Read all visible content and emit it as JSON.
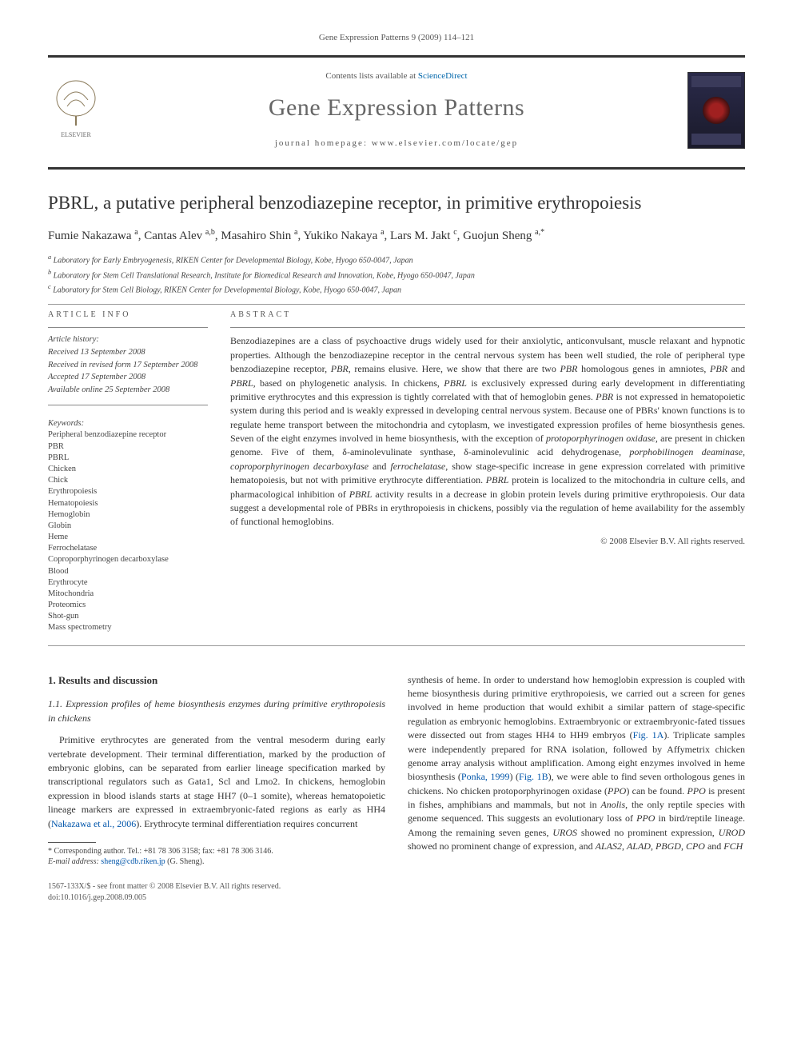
{
  "running_head": "Gene Expression Patterns 9 (2009) 114–121",
  "masthead": {
    "contents_prefix": "Contents lists available at ",
    "contents_link": "ScienceDirect",
    "journal_name": "Gene Expression Patterns",
    "homepage_prefix": "journal homepage: ",
    "homepage_url": "www.elsevier.com/locate/gep"
  },
  "article": {
    "title": "PBRL, a putative peripheral benzodiazepine receptor, in primitive erythropoiesis",
    "authors_html": "Fumie Nakazawa <sup>a</sup>, Cantas Alev <sup>a,b</sup>, Masahiro Shin <sup>a</sup>, Yukiko Nakaya <sup>a</sup>, Lars M. Jakt <sup>c</sup>, Guojun Sheng <sup>a,*</sup>",
    "affiliations": [
      "a Laboratory for Early Embryogenesis, RIKEN Center for Developmental Biology, Kobe, Hyogo 650-0047, Japan",
      "b Laboratory for Stem Cell Translational Research, Institute for Biomedical Research and Innovation, Kobe, Hyogo 650-0047, Japan",
      "c Laboratory for Stem Cell Biology, RIKEN Center for Developmental Biology, Kobe, Hyogo 650-0047, Japan"
    ]
  },
  "info": {
    "section_label": "ARTICLE INFO",
    "history_label": "Article history:",
    "history": [
      "Received 13 September 2008",
      "Received in revised form 17 September 2008",
      "Accepted 17 September 2008",
      "Available online 25 September 2008"
    ],
    "keywords_label": "Keywords:",
    "keywords": [
      "Peripheral benzodiazepine receptor",
      "PBR",
      "PBRL",
      "Chicken",
      "Chick",
      "Erythropoiesis",
      "Hematopoiesis",
      "Hemoglobin",
      "Globin",
      "Heme",
      "Ferrochelatase",
      "Coproporphyrinogen decarboxylase",
      "Blood",
      "Erythrocyte",
      "Mitochondria",
      "Proteomics",
      "Shot-gun",
      "Mass spectrometry"
    ]
  },
  "abstract": {
    "section_label": "ABSTRACT",
    "text": "Benzodiazepines are a class of psychoactive drugs widely used for their anxiolytic, anticonvulsant, muscle relaxant and hypnotic properties. Although the benzodiazepine receptor in the central nervous system has been well studied, the role of peripheral type benzodiazepine receptor, PBR, remains elusive. Here, we show that there are two PBR homologous genes in amniotes, PBR and PBRL, based on phylogenetic analysis. In chickens, PBRL is exclusively expressed during early development in differentiating primitive erythrocytes and this expression is tightly correlated with that of hemoglobin genes. PBR is not expressed in hematopoietic system during this period and is weakly expressed in developing central nervous system. Because one of PBRs' known functions is to regulate heme transport between the mitochondria and cytoplasm, we investigated expression profiles of heme biosynthesis genes. Seven of the eight enzymes involved in heme biosynthesis, with the exception of protoporphyrinogen oxidase, are present in chicken genome. Five of them, δ-aminolevulinate synthase, δ-aminolevulinic acid dehydrogenase, porphobilinogen deaminase, coproporphyrinogen decarboxylase and ferrochelatase, show stage-specific increase in gene expression correlated with primitive hematopoiesis, but not with primitive erythrocyte differentiation. PBRL protein is localized to the mitochondria in culture cells, and pharmacological inhibition of PBRL activity results in a decrease in globin protein levels during primitive erythropoiesis. Our data suggest a developmental role of PBRs in erythropoiesis in chickens, possibly via the regulation of heme availability for the assembly of functional hemoglobins.",
    "copyright": "© 2008 Elsevier B.V. All rights reserved."
  },
  "body": {
    "h1": "1. Results and discussion",
    "h2": "1.1. Expression profiles of heme biosynthesis enzymes during primitive erythropoiesis in chickens",
    "left_paragraph": "Primitive erythrocytes are generated from the ventral mesoderm during early vertebrate development. Their terminal differentiation, marked by the production of embryonic globins, can be separated from earlier lineage specification marked by transcriptional regulators such as Gata1, Scl and Lmo2. In chickens, hemoglobin expression in blood islands starts at stage HH7 (0–1 somite), whereas hematopoietic lineage markers are expressed in extraembryonic-fated regions as early as HH4 (Nakazawa et al., 2006). Erythrocyte terminal differentiation requires concurrent",
    "right_paragraph": "synthesis of heme. In order to understand how hemoglobin expression is coupled with heme biosynthesis during primitive erythropoiesis, we carried out a screen for genes involved in heme production that would exhibit a similar pattern of stage-specific regulation as embryonic hemoglobins. Extraembryonic or extraembryonic-fated tissues were dissected out from stages HH4 to HH9 embryos (Fig. 1A). Triplicate samples were independently prepared for RNA isolation, followed by Affymetrix chicken genome array analysis without amplification. Among eight enzymes involved in heme biosynthesis (Ponka, 1999) (Fig. 1B), we were able to find seven orthologous genes in chickens. No chicken protoporphyrinogen oxidase (PPO) can be found. PPO is present in fishes, amphibians and mammals, but not in Anolis, the only reptile species with genome sequenced. This suggests an evolutionary loss of PPO in bird/reptile lineage. Among the remaining seven genes, UROS showed no prominent expression, UROD showed no prominent change of expression, and ALAS2, ALAD, PBGD, CPO and FCH"
  },
  "footnote": {
    "corr_label": "* Corresponding author. Tel.: +81 78 306 3158; fax: +81 78 306 3146.",
    "email_label": "E-mail address:",
    "email": "sheng@cdb.riken.jp",
    "email_name": "(G. Sheng)."
  },
  "footer": {
    "left1": "1567-133X/$ - see front matter © 2008 Elsevier B.V. All rights reserved.",
    "left2": "doi:10.1016/j.gep.2008.09.005"
  },
  "colors": {
    "rule_dark": "#333333",
    "link": "#0066aa",
    "text": "#333333",
    "muted": "#555555"
  }
}
